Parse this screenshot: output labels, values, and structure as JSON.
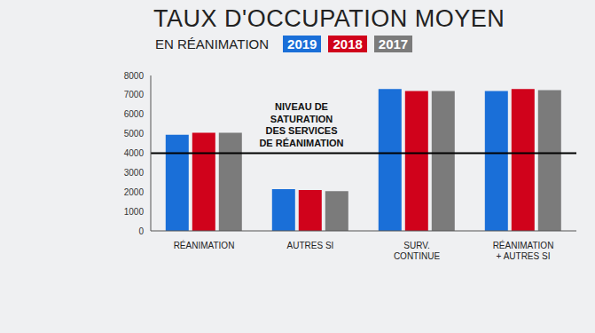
{
  "chart_data": {
    "type": "bar",
    "title": "TAUX D'OCCUPATION MOYEN",
    "subtitle": "EN RÉANIMATION",
    "categories": [
      "RÉANIMATION",
      "AUTRES SI",
      "SURV.\nCONTINUE",
      "RÉANIMATION\n+ AUTRES SI"
    ],
    "series": [
      {
        "name": "2019",
        "color": "#1a6fd8",
        "values": [
          4950,
          2150,
          7300,
          7200
        ]
      },
      {
        "name": "2018",
        "color": "#d0021b",
        "values": [
          5050,
          2100,
          7200,
          7300
        ]
      },
      {
        "name": "2017",
        "color": "#7b7b7b",
        "values": [
          5050,
          2050,
          7200,
          7250
        ]
      }
    ],
    "ylim": [
      0,
      8000
    ],
    "yticks": [
      0,
      1000,
      2000,
      3000,
      4000,
      5000,
      6000,
      7000,
      8000
    ],
    "grid": false,
    "legend": "top",
    "annotations": [
      {
        "type": "hline",
        "y": 4000,
        "text": "NIVEAU DE\nSATURATION\nDES SERVICES\nDE RÉANIMATION"
      }
    ]
  }
}
